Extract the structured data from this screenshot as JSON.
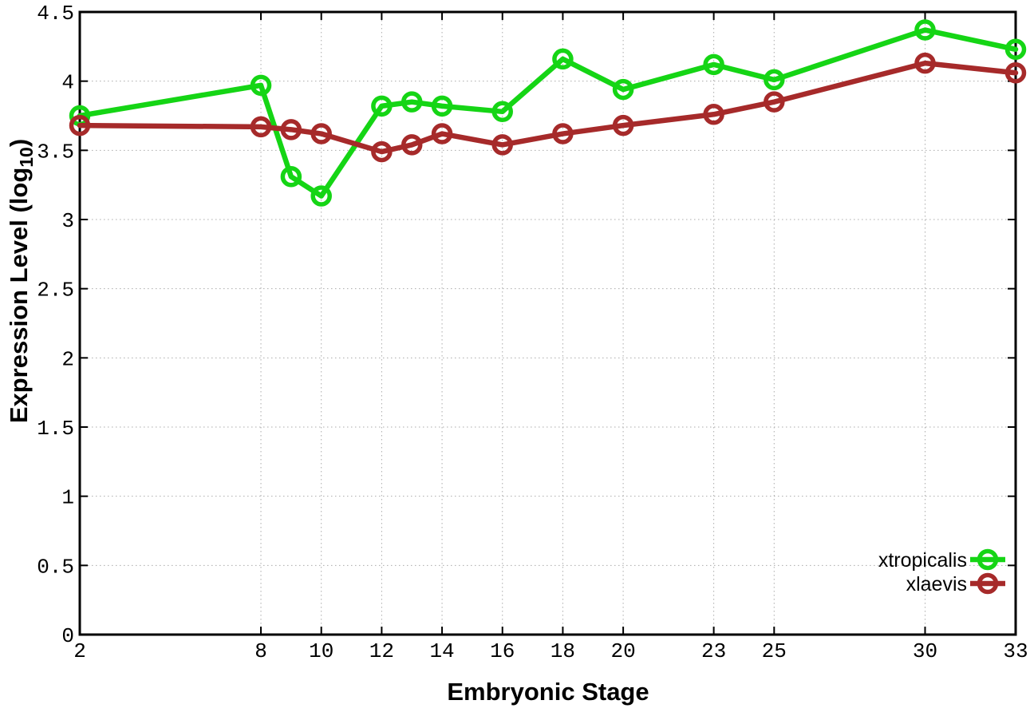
{
  "chart_data": {
    "type": "line",
    "title": "",
    "xlabel": "Embryonic Stage",
    "ylabel": "Expression Level (log10)",
    "ylabel_parts": {
      "main": "Expression Level (log",
      "sub": "10",
      "end": ")"
    },
    "x": [
      2,
      8,
      9,
      10,
      12,
      13,
      14,
      16,
      18,
      20,
      23,
      25,
      30,
      33
    ],
    "xticks": [
      2,
      8,
      10,
      12,
      14,
      16,
      18,
      20,
      23,
      25,
      30,
      33
    ],
    "yticks": [
      0,
      0.5,
      1,
      1.5,
      2,
      2.5,
      3,
      3.5,
      4,
      4.5
    ],
    "xlim": [
      2,
      33
    ],
    "ylim": [
      0,
      4.5
    ],
    "grid": true,
    "legend_position": "inside-bottom-right",
    "marker": "open-circle",
    "series": [
      {
        "name": "xtropicalis",
        "color": "#15d515",
        "values": [
          3.75,
          3.97,
          3.31,
          3.17,
          3.82,
          3.85,
          3.82,
          3.78,
          4.16,
          3.94,
          4.12,
          4.01,
          4.37,
          4.23
        ]
      },
      {
        "name": "xlaevis",
        "color": "#a62a2a",
        "values": [
          3.68,
          3.67,
          3.65,
          3.62,
          3.49,
          3.54,
          3.62,
          3.54,
          3.62,
          3.68,
          3.76,
          3.85,
          4.13,
          4.06
        ]
      }
    ]
  }
}
